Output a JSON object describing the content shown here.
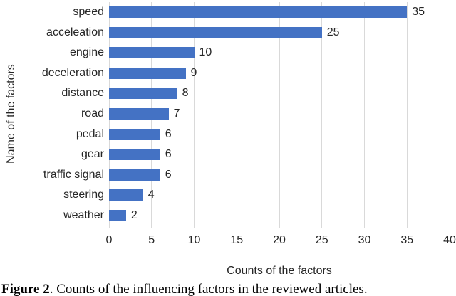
{
  "chart_data": {
    "type": "bar",
    "orientation": "horizontal",
    "categories": [
      "speed",
      "acceleation",
      "engine",
      "deceleration",
      "distance",
      "road",
      "pedal",
      "gear",
      "traffic signal",
      "steering",
      "weather"
    ],
    "values": [
      35,
      25,
      10,
      9,
      8,
      7,
      6,
      6,
      6,
      4,
      2
    ],
    "title": "",
    "xlabel": "Counts of the factors",
    "ylabel": "Name of the factors",
    "xlim": [
      0,
      40
    ],
    "xticks": [
      0,
      5,
      10,
      15,
      20,
      25,
      30,
      35,
      40
    ],
    "grid": "vertical-only",
    "legend": "none",
    "data_labels": true,
    "bar_color": "#4472c4",
    "gridline_color": "#d9d9d9",
    "text_color": "#262626"
  },
  "caption": {
    "label": "Figure 2",
    "text": ". Counts of the influencing factors in the reviewed articles."
  }
}
